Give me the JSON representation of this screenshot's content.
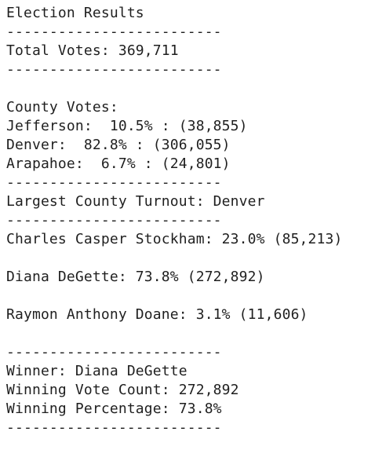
{
  "output": {
    "title": "Election Results",
    "separator": "-------------------------",
    "total_votes": "Total Votes: 369,711",
    "county_votes_heading": "County Votes:",
    "counties": [
      "Jefferson:  10.5% : (38,855)",
      "Denver:  82.8% : (306,055)",
      "Arapahoe:  6.7% : (24,801)"
    ],
    "largest_county": "Largest County Turnout: Denver",
    "candidates": [
      "Charles Casper Stockham: 23.0% (85,213)",
      "Diana DeGette: 73.8% (272,892)",
      "Raymon Anthony Doane: 3.1% (11,606)"
    ],
    "winner": "Winner: Diana DeGette",
    "winning_vote_count": "Winning Vote Count: 272,892",
    "winning_percentage": "Winning Percentage: 73.8%"
  }
}
